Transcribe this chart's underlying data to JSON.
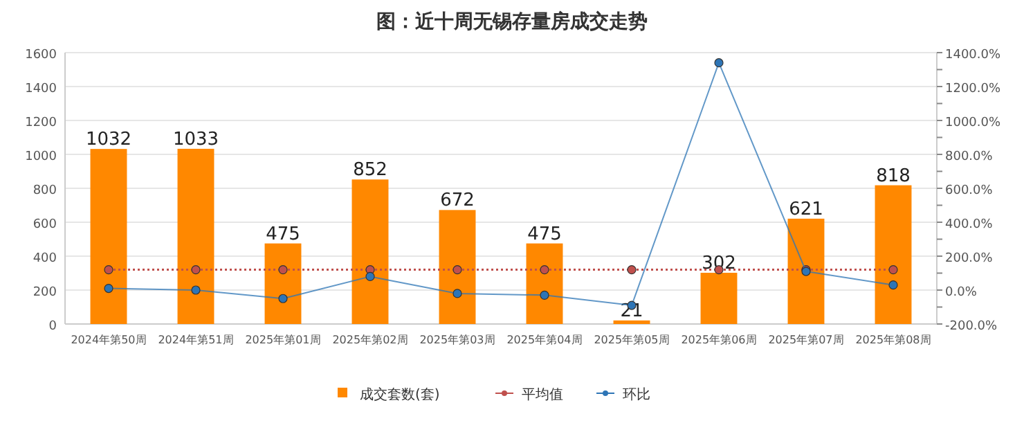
{
  "chart_data": {
    "type": "bar",
    "title": "图：近十周无锡存量房成交走势",
    "categories": [
      "2024年第50周",
      "2024年第51周",
      "2025年第01周",
      "2025年第02周",
      "2025年第03周",
      "2025年第04周",
      "2025年第05周",
      "2025年第06周",
      "2025年第07周",
      "2025年第08周"
    ],
    "series": [
      {
        "name": "成交套数(套)",
        "color": "#ff8800",
        "values": [
          1032,
          1033,
          475,
          852,
          672,
          475,
          21,
          302,
          621,
          818
        ],
        "value_labels": [
          "1032",
          "1033",
          "475",
          "852",
          "672",
          "475",
          "21",
          "302",
          "621",
          "818"
        ]
      },
      {
        "name": "平均值",
        "type": "line",
        "axis": "y2",
        "color": "#c0504d",
        "line_style": "dotted",
        "values": [
          120,
          120,
          120,
          120,
          120,
          120,
          120,
          120,
          120,
          120
        ]
      },
      {
        "name": "环比",
        "type": "line",
        "axis": "y2",
        "color": "#2e75b6",
        "line_style": "solid",
        "values": [
          10,
          0,
          -50,
          80,
          -20,
          -30,
          -90,
          1340,
          110,
          30
        ]
      }
    ],
    "ylim": [
      0,
      1600
    ],
    "yticks": [
      0,
      200,
      400,
      600,
      800,
      1000,
      1200,
      1400,
      1600
    ],
    "y2lim": [
      -200,
      1400
    ],
    "y2ticks": [
      {
        "value": -200,
        "label": "-200.0%"
      },
      {
        "value": -100,
        "label": null
      },
      {
        "value": 0,
        "label": "0.0%"
      },
      {
        "value": 100,
        "label": null
      },
      {
        "value": 200,
        "label": "200.0%"
      },
      {
        "value": 300,
        "label": null
      },
      {
        "value": 400,
        "label": "400.0%"
      },
      {
        "value": 500,
        "label": null
      },
      {
        "value": 600,
        "label": "600.0%"
      },
      {
        "value": 700,
        "label": null
      },
      {
        "value": 800,
        "label": "800.0%"
      },
      {
        "value": 900,
        "label": null
      },
      {
        "value": 1000,
        "label": "1000.0%"
      },
      {
        "value": 1100,
        "label": null
      },
      {
        "value": 1200,
        "label": "1200.0%"
      },
      {
        "value": 1300,
        "label": null
      },
      {
        "value": 1400,
        "label": "1400.0%"
      }
    ],
    "grid": "y",
    "legend": "bottom",
    "marker": "circle"
  }
}
